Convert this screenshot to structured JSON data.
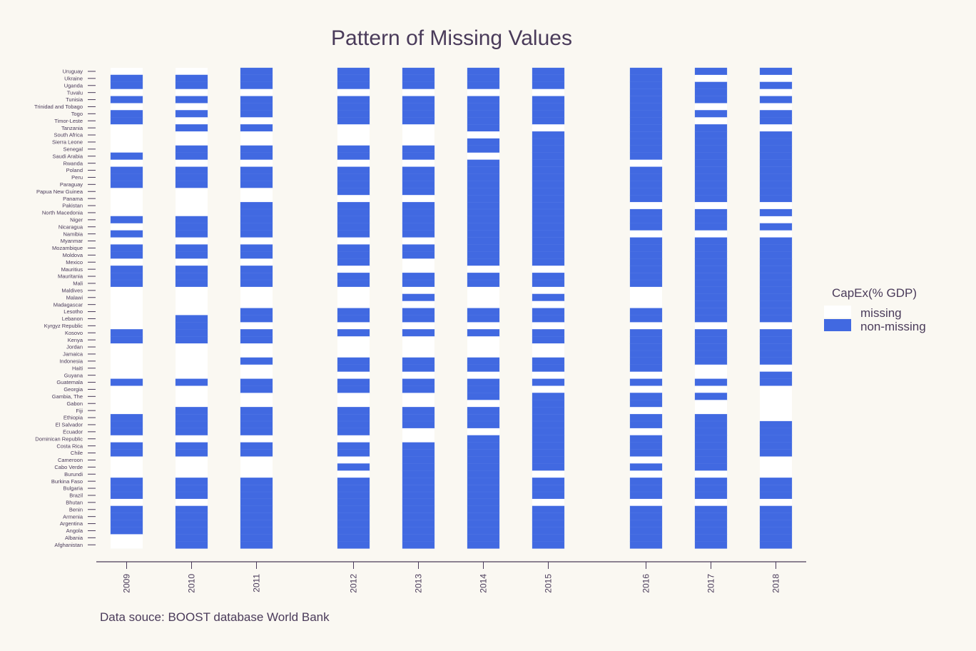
{
  "chart_data": {
    "type": "heatmap",
    "title": "Pattern of Missing Values",
    "caption": "Data souce: BOOST database World Bank",
    "legend": {
      "title": "CapEx(% GDP)",
      "placement": "right",
      "entries": [
        {
          "label": "missing",
          "color": "#ffffff"
        },
        {
          "label": "non-missing",
          "color": "#4169e1"
        }
      ]
    },
    "colors": {
      "present": "#4169e1",
      "missing": "#ffffff",
      "background": "#faf8f2",
      "text": "#4a3b5a"
    },
    "years": [
      "2009",
      "2010",
      "2011",
      "2012",
      "2013",
      "2014",
      "2015",
      "2016",
      "2017",
      "2018"
    ],
    "countries": [
      "Uruguay",
      "Ukraine",
      "Uganda",
      "Tuvalu",
      "Tunisia",
      "Trinidad and Tobago",
      "Togo",
      "Timor-Leste",
      "Tanzania",
      "South Africa",
      "Sierra Leone",
      "Senegal",
      "Saudi Arabia",
      "Rwanda",
      "Poland",
      "Peru",
      "Paraguay",
      "Papua New Guinea",
      "Panama",
      "Pakistan",
      "North Macedonia",
      "Niger",
      "Nicaragua",
      "Namibia",
      "Myanmar",
      "Mozambique",
      "Moldova",
      "Mexico",
      "Mauritius",
      "Mauritania",
      "Mali",
      "Maldives",
      "Malawi",
      "Madagascar",
      "Lesotho",
      "Lebanon",
      "Kyrgyz Republic",
      "Kosovo",
      "Kenya",
      "Jordan",
      "Jamaica",
      "Indonesia",
      "Haiti",
      "Guyana",
      "Guatemala",
      "Georgia",
      "Gambia, The",
      "Gabon",
      "Fiji",
      "Ethiopia",
      "El Salvador",
      "Ecuador",
      "Dominican Republic",
      "Costa Rica",
      "Chile",
      "Cameroon",
      "Cabo Verde",
      "Burundi",
      "Burkina Faso",
      "Bulgaria",
      "Brazil",
      "Bhutan",
      "Benin",
      "Armenia",
      "Argentina",
      "Angola",
      "Albania",
      "Afghanistan"
    ],
    "present": {
      "2009": [
        "Ukraine",
        "Uganda",
        "Tunisia",
        "Togo",
        "Timor-Leste",
        "Saudi Arabia",
        "Poland",
        "Peru",
        "Paraguay",
        "Niger",
        "Namibia",
        "Mozambique",
        "Moldova",
        "Mauritius",
        "Mauritania",
        "Mali",
        "Kosovo",
        "Kenya",
        "Guatemala",
        "Ethiopia",
        "El Salvador",
        "Ecuador",
        "Costa Rica",
        "Chile",
        "Burkina Faso",
        "Bulgaria",
        "Brazil",
        "Benin",
        "Armenia",
        "Argentina",
        "Angola"
      ],
      "2010": [
        "Ukraine",
        "Uganda",
        "Tunisia",
        "Togo",
        "Tanzania",
        "Senegal",
        "Saudi Arabia",
        "Poland",
        "Peru",
        "Paraguay",
        "Niger",
        "Nicaragua",
        "Namibia",
        "Mozambique",
        "Moldova",
        "Mauritius",
        "Mauritania",
        "Mali",
        "Lebanon",
        "Kyrgyz Republic",
        "Kosovo",
        "Kenya",
        "Guatemala",
        "Fiji",
        "Ethiopia",
        "El Salvador",
        "Ecuador",
        "Costa Rica",
        "Chile",
        "Burkina Faso",
        "Bulgaria",
        "Brazil",
        "Benin",
        "Armenia",
        "Argentina",
        "Angola",
        "Albania",
        "Afghanistan"
      ],
      "2011": [
        "Uruguay",
        "Ukraine",
        "Uganda",
        "Tunisia",
        "Trinidad and Tobago",
        "Togo",
        "Tanzania",
        "Senegal",
        "Saudi Arabia",
        "Poland",
        "Peru",
        "Paraguay",
        "Pakistan",
        "North Macedonia",
        "Niger",
        "Nicaragua",
        "Namibia",
        "Mozambique",
        "Moldova",
        "Mauritius",
        "Mauritania",
        "Mali",
        "Lesotho",
        "Lebanon",
        "Kosovo",
        "Kenya",
        "Indonesia",
        "Guatemala",
        "Georgia",
        "Fiji",
        "Ethiopia",
        "El Salvador",
        "Ecuador",
        "Costa Rica",
        "Chile",
        "Burkina Faso",
        "Bulgaria",
        "Brazil",
        "Bhutan",
        "Benin",
        "Armenia",
        "Argentina",
        "Angola",
        "Albania",
        "Afghanistan"
      ],
      "2012": [
        "Uruguay",
        "Ukraine",
        "Uganda",
        "Tunisia",
        "Trinidad and Tobago",
        "Togo",
        "Timor-Leste",
        "Senegal",
        "Saudi Arabia",
        "Poland",
        "Peru",
        "Paraguay",
        "Papua New Guinea",
        "Pakistan",
        "North Macedonia",
        "Niger",
        "Nicaragua",
        "Namibia",
        "Mozambique",
        "Moldova",
        "Mexico",
        "Mauritania",
        "Mali",
        "Lesotho",
        "Lebanon",
        "Kosovo",
        "Indonesia",
        "Haiti",
        "Guatemala",
        "Georgia",
        "Fiji",
        "Ethiopia",
        "El Salvador",
        "Ecuador",
        "Costa Rica",
        "Chile",
        "Cabo Verde",
        "Burkina Faso",
        "Bulgaria",
        "Brazil",
        "Bhutan",
        "Benin",
        "Armenia",
        "Argentina",
        "Angola",
        "Albania",
        "Afghanistan"
      ],
      "2013": [
        "Uruguay",
        "Ukraine",
        "Uganda",
        "Tunisia",
        "Trinidad and Tobago",
        "Togo",
        "Timor-Leste",
        "Senegal",
        "Saudi Arabia",
        "Poland",
        "Peru",
        "Paraguay",
        "Papua New Guinea",
        "Pakistan",
        "North Macedonia",
        "Niger",
        "Nicaragua",
        "Namibia",
        "Mozambique",
        "Moldova",
        "Mauritania",
        "Mali",
        "Malawi",
        "Lesotho",
        "Lebanon",
        "Kosovo",
        "Indonesia",
        "Haiti",
        "Guatemala",
        "Georgia",
        "Fiji",
        "Ethiopia",
        "El Salvador",
        "Costa Rica",
        "Chile",
        "Cameroon",
        "Cabo Verde",
        "Burundi",
        "Burkina Faso",
        "Bulgaria",
        "Brazil",
        "Bhutan",
        "Benin",
        "Armenia",
        "Argentina",
        "Angola",
        "Albania",
        "Afghanistan"
      ],
      "2014": [
        "Uruguay",
        "Ukraine",
        "Uganda",
        "Tunisia",
        "Trinidad and Tobago",
        "Togo",
        "Timor-Leste",
        "Tanzania",
        "Sierra Leone",
        "Senegal",
        "Rwanda",
        "Poland",
        "Peru",
        "Paraguay",
        "Papua New Guinea",
        "Panama",
        "Pakistan",
        "North Macedonia",
        "Niger",
        "Nicaragua",
        "Namibia",
        "Myanmar",
        "Mozambique",
        "Moldova",
        "Mexico",
        "Mauritania",
        "Mali",
        "Lesotho",
        "Lebanon",
        "Kosovo",
        "Indonesia",
        "Haiti",
        "Guatemala",
        "Georgia",
        "Gambia, The",
        "Fiji",
        "Ethiopia",
        "El Salvador",
        "Dominican Republic",
        "Costa Rica",
        "Chile",
        "Cameroon",
        "Cabo Verde",
        "Burundi",
        "Burkina Faso",
        "Bulgaria",
        "Brazil",
        "Bhutan",
        "Benin",
        "Armenia",
        "Argentina",
        "Angola",
        "Albania",
        "Afghanistan"
      ],
      "2015": [
        "Uruguay",
        "Ukraine",
        "Uganda",
        "Tunisia",
        "Trinidad and Tobago",
        "Togo",
        "Timor-Leste",
        "South Africa",
        "Sierra Leone",
        "Senegal",
        "Saudi Arabia",
        "Rwanda",
        "Poland",
        "Peru",
        "Paraguay",
        "Papua New Guinea",
        "Panama",
        "Pakistan",
        "North Macedonia",
        "Niger",
        "Nicaragua",
        "Namibia",
        "Myanmar",
        "Mozambique",
        "Moldova",
        "Mexico",
        "Mauritania",
        "Mali",
        "Malawi",
        "Lesotho",
        "Lebanon",
        "Kosovo",
        "Kenya",
        "Indonesia",
        "Haiti",
        "Guatemala",
        "Gambia, The",
        "Gabon",
        "Fiji",
        "Ethiopia",
        "El Salvador",
        "Ecuador",
        "Dominican Republic",
        "Costa Rica",
        "Chile",
        "Cameroon",
        "Cabo Verde",
        "Burkina Faso",
        "Bulgaria",
        "Brazil",
        "Benin",
        "Armenia",
        "Argentina",
        "Angola",
        "Albania",
        "Afghanistan"
      ],
      "2016": [
        "Uruguay",
        "Ukraine",
        "Uganda",
        "Tuvalu",
        "Tunisia",
        "Trinidad and Tobago",
        "Togo",
        "Timor-Leste",
        "Tanzania",
        "South Africa",
        "Sierra Leone",
        "Senegal",
        "Saudi Arabia",
        "Poland",
        "Peru",
        "Paraguay",
        "Papua New Guinea",
        "Panama",
        "North Macedonia",
        "Niger",
        "Nicaragua",
        "Myanmar",
        "Mozambique",
        "Moldova",
        "Mexico",
        "Mauritius",
        "Mauritania",
        "Mali",
        "Lesotho",
        "Lebanon",
        "Kosovo",
        "Kenya",
        "Jordan",
        "Jamaica",
        "Indonesia",
        "Haiti",
        "Guatemala",
        "Gambia, The",
        "Gabon",
        "Ethiopia",
        "El Salvador",
        "Dominican Republic",
        "Costa Rica",
        "Chile",
        "Cabo Verde",
        "Burkina Faso",
        "Bulgaria",
        "Brazil",
        "Benin",
        "Armenia",
        "Argentina",
        "Angola",
        "Albania",
        "Afghanistan"
      ],
      "2017": [
        "Uruguay",
        "Uganda",
        "Tuvalu",
        "Tunisia",
        "Togo",
        "Tanzania",
        "South Africa",
        "Sierra Leone",
        "Senegal",
        "Saudi Arabia",
        "Rwanda",
        "Poland",
        "Peru",
        "Paraguay",
        "Papua New Guinea",
        "Panama",
        "North Macedonia",
        "Niger",
        "Nicaragua",
        "Myanmar",
        "Mozambique",
        "Moldova",
        "Mexico",
        "Mauritius",
        "Mauritania",
        "Mali",
        "Maldives",
        "Malawi",
        "Madagascar",
        "Lesotho",
        "Lebanon",
        "Kosovo",
        "Kenya",
        "Jordan",
        "Jamaica",
        "Indonesia",
        "Guatemala",
        "Gambia, The",
        "Ethiopia",
        "El Salvador",
        "Ecuador",
        "Dominican Republic",
        "Costa Rica",
        "Chile",
        "Cameroon",
        "Cabo Verde",
        "Burkina Faso",
        "Bulgaria",
        "Brazil",
        "Benin",
        "Armenia",
        "Argentina",
        "Angola",
        "Albania",
        "Afghanistan"
      ],
      "2018": [
        "Uruguay",
        "Uganda",
        "Tunisia",
        "Togo",
        "Timor-Leste",
        "South Africa",
        "Sierra Leone",
        "Senegal",
        "Saudi Arabia",
        "Rwanda",
        "Poland",
        "Peru",
        "Paraguay",
        "Papua New Guinea",
        "Panama",
        "North Macedonia",
        "Nicaragua",
        "Myanmar",
        "Mozambique",
        "Moldova",
        "Mexico",
        "Mauritius",
        "Mauritania",
        "Mali",
        "Maldives",
        "Malawi",
        "Madagascar",
        "Lesotho",
        "Lebanon",
        "Kosovo",
        "Kenya",
        "Jordan",
        "Jamaica",
        "Indonesia",
        "Guyana",
        "Guatemala",
        "El Salvador",
        "Ecuador",
        "Dominican Republic",
        "Costa Rica",
        "Chile",
        "Burkina Faso",
        "Bulgaria",
        "Brazil",
        "Benin",
        "Armenia",
        "Argentina",
        "Angola",
        "Albania",
        "Afghanistan"
      ]
    }
  }
}
